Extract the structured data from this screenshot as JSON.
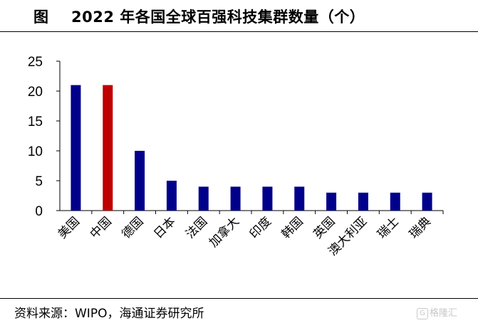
{
  "title": {
    "prefix": "图",
    "text": "2022 年各国全球百强科技集群数量（个）"
  },
  "source": "资料来源：WIPO，海通证券研究所",
  "watermark": {
    "icon": "G",
    "text": "格隆汇"
  },
  "colors": {
    "default_bar": "#00008B",
    "highlight_bar": "#C00000",
    "axis": "#000000"
  },
  "chart_data": {
    "type": "bar",
    "title": "2022 年各国全球百强科技集群数量（个）",
    "xlabel": "",
    "ylabel": "",
    "categories": [
      "美国",
      "中国",
      "德国",
      "日本",
      "法国",
      "加拿大",
      "印度",
      "韩国",
      "英国",
      "澳大利亚",
      "瑞士",
      "瑞典"
    ],
    "values": [
      21,
      21,
      10,
      5,
      4,
      4,
      4,
      4,
      3,
      3,
      3,
      3
    ],
    "highlight_index": 1,
    "ylim": [
      0,
      25
    ],
    "yticks": [
      0,
      5,
      10,
      15,
      20,
      25
    ],
    "grid": false,
    "legend": "none"
  }
}
